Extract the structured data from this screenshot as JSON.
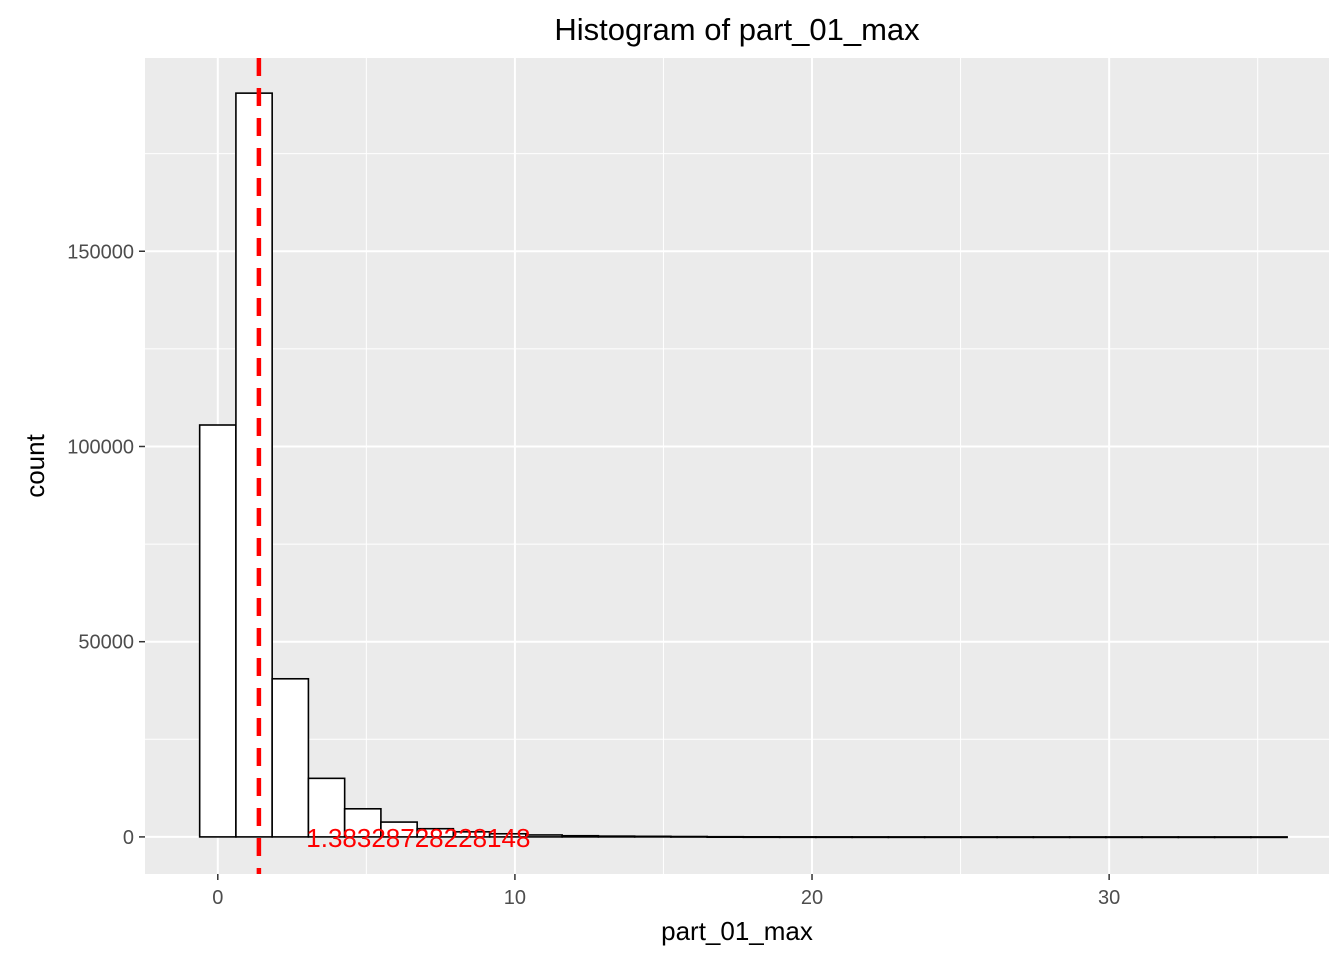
{
  "chart_data": {
    "type": "bar",
    "title": "Histogram of  part_01_max",
    "xlabel": "part_01_max",
    "ylabel": "count",
    "xlim": [
      -2.45,
      37.4
    ],
    "ylim": [
      -9500,
      199500
    ],
    "x_ticks": [
      0,
      10,
      20,
      30
    ],
    "x_tick_labels": [
      "0",
      "10",
      "20",
      "30"
    ],
    "y_ticks": [
      0,
      50000,
      100000,
      150000
    ],
    "y_tick_labels": [
      "0",
      "50000",
      "100000",
      "150000"
    ],
    "bin_width": 1.22,
    "bins": [
      {
        "x0": -0.61,
        "x1": 0.61,
        "count": 105500
      },
      {
        "x0": 0.61,
        "x1": 1.83,
        "count": 190500
      },
      {
        "x0": 1.83,
        "x1": 3.05,
        "count": 40500
      },
      {
        "x0": 3.05,
        "x1": 4.27,
        "count": 15000
      },
      {
        "x0": 4.27,
        "x1": 5.49,
        "count": 7200
      },
      {
        "x0": 5.49,
        "x1": 6.71,
        "count": 3800
      },
      {
        "x0": 6.71,
        "x1": 7.93,
        "count": 2100
      },
      {
        "x0": 7.93,
        "x1": 9.15,
        "count": 1300
      },
      {
        "x0": 9.15,
        "x1": 10.37,
        "count": 800
      },
      {
        "x0": 10.37,
        "x1": 11.59,
        "count": 500
      },
      {
        "x0": 11.59,
        "x1": 12.81,
        "count": 300
      },
      {
        "x0": 12.81,
        "x1": 14.03,
        "count": 200
      },
      {
        "x0": 14.03,
        "x1": 15.25,
        "count": 150
      },
      {
        "x0": 15.25,
        "x1": 16.47,
        "count": 100
      },
      {
        "x0": 16.47,
        "x1": 17.69,
        "count": 50
      },
      {
        "x0": 17.69,
        "x1": 18.91,
        "count": 30
      },
      {
        "x0": 18.91,
        "x1": 20.13,
        "count": 20
      },
      {
        "x0": 20.13,
        "x1": 21.35,
        "count": 15
      },
      {
        "x0": 21.35,
        "x1": 22.57,
        "count": 10
      },
      {
        "x0": 22.57,
        "x1": 23.79,
        "count": 8
      },
      {
        "x0": 23.79,
        "x1": 25.01,
        "count": 6
      },
      {
        "x0": 25.01,
        "x1": 26.23,
        "count": 5
      },
      {
        "x0": 26.23,
        "x1": 27.45,
        "count": 4
      },
      {
        "x0": 27.45,
        "x1": 28.67,
        "count": 3
      },
      {
        "x0": 28.67,
        "x1": 29.89,
        "count": 3
      },
      {
        "x0": 29.89,
        "x1": 31.11,
        "count": 2
      },
      {
        "x0": 31.11,
        "x1": 32.33,
        "count": 2
      },
      {
        "x0": 32.33,
        "x1": 33.55,
        "count": 1
      },
      {
        "x0": 33.55,
        "x1": 34.77,
        "count": 1
      },
      {
        "x0": 34.77,
        "x1": 35.99,
        "count": 1
      }
    ],
    "vline": {
      "x": 1.38328728228148,
      "color": "#ff0000",
      "style": "dashed"
    },
    "annotation": {
      "text": "1.38328728228148",
      "x": 6.75,
      "y": 0,
      "color": "#ff0000"
    },
    "grid": true,
    "panel_background": "#ebebeb",
    "grid_color": "#ffffff",
    "bar_fill": "#ffffff",
    "bar_stroke": "#000000"
  }
}
